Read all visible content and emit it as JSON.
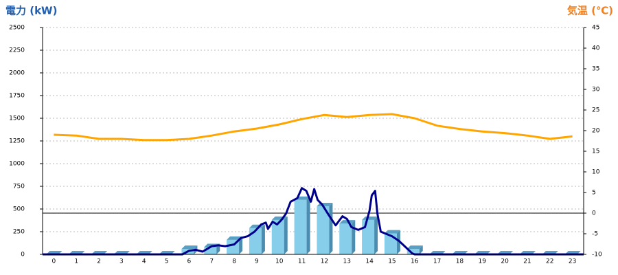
{
  "chart_data": {
    "type": "bar-line",
    "y_title": "電力 (kW)",
    "y2_title": "気温 (℃)",
    "categories": [
      "0",
      "1",
      "2",
      "3",
      "4",
      "5",
      "6",
      "7",
      "8",
      "9",
      "10",
      "11",
      "12",
      "13",
      "14",
      "15",
      "16",
      "17",
      "18",
      "19",
      "20",
      "21",
      "22",
      "23"
    ],
    "ylim": [
      0,
      2500
    ],
    "yticks": [
      0,
      250,
      500,
      750,
      1000,
      1250,
      1500,
      1750,
      2000,
      2250,
      2500
    ],
    "y2lim": [
      -10,
      45
    ],
    "y2ticks": [
      -10,
      -5,
      0,
      5,
      10,
      15,
      20,
      25,
      30,
      35,
      40,
      45
    ],
    "grid": true,
    "bars": {
      "color": "#87ceeb",
      "values": [
        0,
        0,
        0,
        0,
        0,
        0,
        60,
        80,
        160,
        290,
        380,
        600,
        530,
        340,
        380,
        230,
        60,
        0,
        0,
        0,
        0,
        0,
        0,
        0
      ]
    },
    "power_line": {
      "color": "#00008b",
      "x": [
        -0.5,
        5.7,
        6,
        6.3,
        6.6,
        6.8,
        7,
        7.3,
        7.6,
        8,
        8.3,
        8.6,
        8.9,
        9.2,
        9.4,
        9.5,
        9.7,
        9.9,
        10.1,
        10.3,
        10.5,
        10.8,
        11,
        11.2,
        11.4,
        11.55,
        11.7,
        11.9,
        12.2,
        12.5,
        12.8,
        13,
        13.2,
        13.5,
        13.8,
        14,
        14.1,
        14.25,
        14.35,
        14.5,
        14.8,
        15,
        15.3,
        15.6,
        15.9,
        16,
        23.5
      ],
      "values": [
        0,
        0,
        40,
        50,
        30,
        60,
        90,
        100,
        90,
        110,
        180,
        200,
        250,
        330,
        350,
        280,
        360,
        330,
        380,
        450,
        580,
        620,
        730,
        700,
        580,
        720,
        600,
        550,
        430,
        320,
        420,
        390,
        300,
        270,
        300,
        480,
        650,
        700,
        450,
        250,
        220,
        200,
        150,
        80,
        10,
        0,
        0
      ]
    },
    "temperature": {
      "color": "#ffa500",
      "axis": "y2",
      "values": [
        19,
        18.8,
        18,
        18,
        17.7,
        17.7,
        18,
        18.8,
        19.8,
        20.5,
        21.5,
        22.8,
        23.8,
        23.3,
        23.8,
        24,
        23,
        21.2,
        20.4,
        19.8,
        19.4,
        18.8,
        18,
        18.6
      ]
    }
  }
}
